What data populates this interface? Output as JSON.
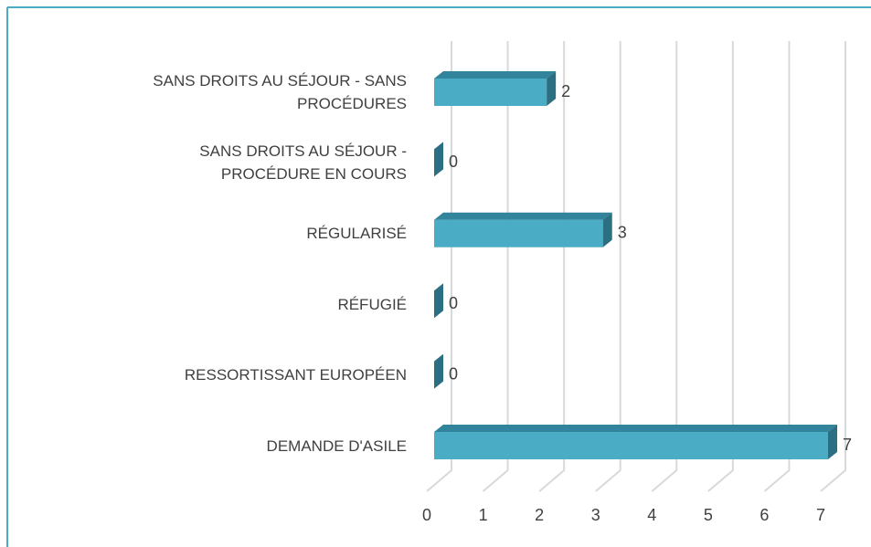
{
  "chart_data": {
    "type": "bar3d_horizontal",
    "categories": [
      "SANS DROITS AU SÉJOUR - SANS PROCÉDURES",
      "SANS DROITS AU SÉJOUR - PROCÉDURE EN COURS",
      "RÉGULARISÉ",
      "RÉFUGIÉ",
      "RESSORTISSANT EUROPÉEN",
      "DEMANDE D'ASILE"
    ],
    "values": [
      2,
      0,
      3,
      0,
      0,
      7
    ],
    "color": "#4bacc6",
    "xlim": [
      0,
      7
    ],
    "xticks": [
      0,
      1,
      2,
      3,
      4,
      5,
      6,
      7
    ],
    "grid": true
  }
}
